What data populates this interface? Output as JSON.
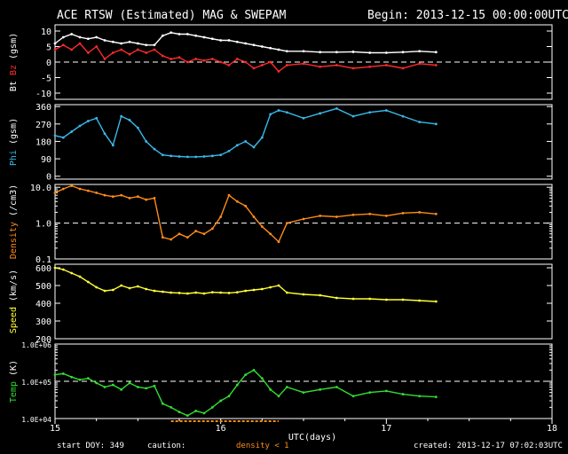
{
  "header": {
    "title": "ACE RTSW (Estimated) MAG & SWEPAM",
    "begin": "Begin: 2013-12-15 00:00:00UTC"
  },
  "footer": {
    "start_doy": "start DOY: 349",
    "caution": "caution:",
    "density_note": "density < 1",
    "created": "created: 2013-12-17 07:02:03UTC"
  },
  "chart_data": {
    "type": "line",
    "x_label": "UTC(days)",
    "x_ticks": [
      15,
      16,
      17,
      18
    ],
    "x_range": [
      15,
      18
    ],
    "data_end_day": 17.3,
    "panels": [
      {
        "name": "mag",
        "scale": "linear",
        "y_range": [
          -12,
          12
        ],
        "y_ticks": [
          10,
          5,
          0,
          -5,
          -10
        ],
        "y_tick_labels": [
          "10",
          "5",
          "0",
          "-5",
          "-10"
        ],
        "dashed_at": 0,
        "label_parts": [
          {
            "text": "Bt",
            "color": "#ffffff"
          },
          {
            "text": " Bz",
            "color": "#ff2a2a"
          },
          {
            "text": " (gsm)",
            "color": "#ffffff"
          }
        ],
        "series": [
          {
            "name": "Bt",
            "color": "#ffffff",
            "x": [
              15.0,
              15.05,
              15.1,
              15.15,
              15.2,
              15.25,
              15.3,
              15.35,
              15.4,
              15.45,
              15.5,
              15.55,
              15.6,
              15.65,
              15.7,
              15.75,
              15.8,
              15.85,
              15.9,
              15.95,
              16.0,
              16.05,
              16.1,
              16.15,
              16.2,
              16.25,
              16.3,
              16.35,
              16.4,
              16.5,
              16.6,
              16.7,
              16.8,
              16.9,
              17.0,
              17.1,
              17.2,
              17.3
            ],
            "y": [
              6,
              8,
              9,
              8,
              7.5,
              8,
              7,
              6.5,
              6,
              6.5,
              6,
              5.5,
              5.5,
              8.5,
              9.5,
              9,
              9,
              8.5,
              8,
              7.5,
              7,
              7,
              6.5,
              6,
              5.5,
              5,
              4.5,
              4,
              3.5,
              3.5,
              3.2,
              3.2,
              3.3,
              3,
              3,
              3.2,
              3.5,
              3.2
            ]
          },
          {
            "name": "Bz",
            "color": "#ff2a2a",
            "x": [
              15.0,
              15.05,
              15.1,
              15.15,
              15.2,
              15.25,
              15.3,
              15.35,
              15.4,
              15.45,
              15.5,
              15.55,
              15.6,
              15.65,
              15.7,
              15.75,
              15.8,
              15.85,
              15.9,
              15.95,
              16.0,
              16.05,
              16.1,
              16.15,
              16.2,
              16.25,
              16.3,
              16.35,
              16.4,
              16.5,
              16.6,
              16.7,
              16.8,
              16.9,
              17.0,
              17.1,
              17.2,
              17.3
            ],
            "y": [
              4,
              5.5,
              4,
              6,
              3,
              5,
              1,
              3,
              4,
              2.5,
              4,
              3,
              4,
              2,
              1,
              1.5,
              0,
              1,
              0.5,
              1,
              0,
              -1,
              1,
              0,
              -2,
              -1,
              0,
              -3,
              -1,
              -0.5,
              -1.5,
              -1,
              -2,
              -1.5,
              -1,
              -2,
              -0.5,
              -1
            ]
          }
        ]
      },
      {
        "name": "phi",
        "scale": "linear",
        "y_range": [
          -15,
          370
        ],
        "y_ticks": [
          360,
          270,
          180,
          90,
          0
        ],
        "y_tick_labels": [
          "360",
          "270",
          "180",
          "90",
          "0"
        ],
        "label_parts": [
          {
            "text": "Phi",
            "color": "#3ab8e8"
          },
          {
            "text": " (gsm)",
            "color": "#ffffff"
          }
        ],
        "series": [
          {
            "name": "Phi",
            "color": "#3ab8e8",
            "x": [
              15.0,
              15.05,
              15.1,
              15.15,
              15.2,
              15.25,
              15.3,
              15.35,
              15.4,
              15.45,
              15.5,
              15.55,
              15.6,
              15.65,
              15.7,
              15.75,
              15.8,
              15.85,
              15.9,
              15.95,
              16.0,
              16.05,
              16.1,
              16.15,
              16.2,
              16.25,
              16.3,
              16.35,
              16.4,
              16.5,
              16.6,
              16.7,
              16.8,
              16.9,
              17.0,
              17.1,
              17.2,
              17.3
            ],
            "y": [
              210,
              200,
              230,
              260,
              285,
              300,
              220,
              160,
              310,
              290,
              250,
              180,
              140,
              110,
              105,
              102,
              100,
              100,
              102,
              105,
              110,
              130,
              160,
              180,
              150,
              200,
              320,
              340,
              330,
              300,
              325,
              350,
              310,
              330,
              340,
              310,
              280,
              270
            ]
          }
        ]
      },
      {
        "name": "density",
        "scale": "log",
        "y_range": [
          0.1,
          12
        ],
        "y_ticks": [
          10,
          1,
          0.1
        ],
        "y_tick_labels": [
          "10.0",
          "1.0",
          "0.1"
        ],
        "dashed_at": 1,
        "label_parts": [
          {
            "text": "Density",
            "color": "#ff8c1a"
          },
          {
            "text": " (/cm3)",
            "color": "#ffffff"
          }
        ],
        "series": [
          {
            "name": "Density",
            "color": "#ff8c1a",
            "x": [
              15.0,
              15.05,
              15.1,
              15.15,
              15.2,
              15.25,
              15.3,
              15.35,
              15.4,
              15.45,
              15.5,
              15.55,
              15.6,
              15.65,
              15.7,
              15.75,
              15.8,
              15.85,
              15.9,
              15.95,
              16.0,
              16.05,
              16.1,
              16.15,
              16.2,
              16.25,
              16.3,
              16.35,
              16.4,
              16.5,
              16.6,
              16.7,
              16.8,
              16.9,
              17.0,
              17.1,
              17.2,
              17.3
            ],
            "y": [
              7,
              9,
              11,
              9,
              8,
              7,
              6,
              5.5,
              6,
              5,
              5.5,
              4.5,
              5,
              0.4,
              0.35,
              0.5,
              0.4,
              0.6,
              0.5,
              0.7,
              1.5,
              6,
              4,
              3,
              1.5,
              0.8,
              0.5,
              0.3,
              1,
              1.3,
              1.6,
              1.5,
              1.7,
              1.8,
              1.6,
              1.9,
              2,
              1.8
            ]
          }
        ]
      },
      {
        "name": "speed",
        "scale": "linear",
        "y_range": [
          200,
          620
        ],
        "y_ticks": [
          600,
          500,
          400,
          300,
          200
        ],
        "y_tick_labels": [
          "600",
          "500",
          "400",
          "300",
          "200"
        ],
        "label_parts": [
          {
            "text": "Speed",
            "color": "#ffff33"
          },
          {
            "text": " (km/s)",
            "color": "#ffffff"
          }
        ],
        "series": [
          {
            "name": "Speed",
            "color": "#ffff33",
            "x": [
              15.0,
              15.05,
              15.1,
              15.15,
              15.2,
              15.25,
              15.3,
              15.35,
              15.4,
              15.45,
              15.5,
              15.55,
              15.6,
              15.65,
              15.7,
              15.75,
              15.8,
              15.85,
              15.9,
              15.95,
              16.0,
              16.05,
              16.1,
              16.15,
              16.2,
              16.25,
              16.3,
              16.35,
              16.4,
              16.5,
              16.6,
              16.7,
              16.8,
              16.9,
              17.0,
              17.1,
              17.2,
              17.3
            ],
            "y": [
              600,
              590,
              570,
              550,
              520,
              490,
              470,
              475,
              500,
              485,
              495,
              480,
              470,
              465,
              460,
              458,
              455,
              460,
              455,
              462,
              460,
              458,
              462,
              470,
              475,
              480,
              490,
              500,
              460,
              450,
              445,
              430,
              425,
              425,
              420,
              420,
              415,
              410
            ]
          }
        ]
      },
      {
        "name": "temp",
        "scale": "log",
        "y_range": [
          10000,
          1000000
        ],
        "y_ticks": [
          1000000,
          100000,
          10000
        ],
        "y_tick_labels": [
          "1.0E+06",
          "1.0E+05",
          "1.0E+04"
        ],
        "dashed_at": 100000,
        "label_parts": [
          {
            "text": "Temp",
            "color": "#33dd33"
          },
          {
            "text": " (K)",
            "color": "#ffffff"
          }
        ],
        "series": [
          {
            "name": "Temp",
            "color": "#33dd33",
            "x": [
              15.0,
              15.05,
              15.1,
              15.15,
              15.2,
              15.25,
              15.3,
              15.35,
              15.4,
              15.45,
              15.5,
              15.55,
              15.6,
              15.65,
              15.7,
              15.75,
              15.8,
              15.85,
              15.9,
              15.95,
              16.0,
              16.05,
              16.1,
              16.15,
              16.2,
              16.25,
              16.3,
              16.35,
              16.4,
              16.5,
              16.6,
              16.7,
              16.8,
              16.9,
              17.0,
              17.1,
              17.2,
              17.3
            ],
            "y": [
              150000,
              160000,
              130000,
              110000,
              120000,
              90000,
              70000,
              80000,
              60000,
              90000,
              70000,
              65000,
              75000,
              25000,
              20000,
              15000,
              12000,
              16000,
              14000,
              20000,
              30000,
              40000,
              80000,
              150000,
              200000,
              120000,
              60000,
              40000,
              70000,
              50000,
              60000,
              70000,
              40000,
              50000,
              55000,
              45000,
              40000,
              38000
            ]
          }
        ]
      }
    ]
  }
}
